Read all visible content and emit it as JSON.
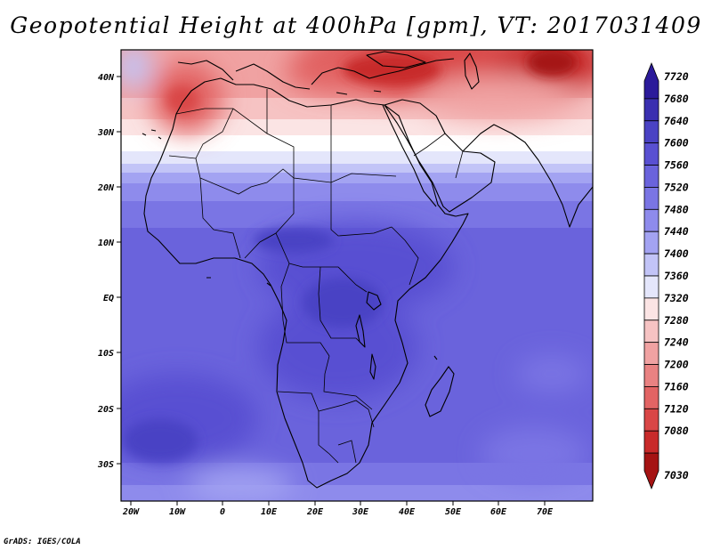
{
  "title": "Geopotential Height at 400hPa [gpm], VT: 2017031409",
  "credit": "GrADS: IGES/COLA",
  "map": {
    "region": "Africa",
    "lon_range": [
      -22,
      80
    ],
    "lat_range": [
      -37,
      45
    ],
    "lon_ticks": [
      "20W",
      "10W",
      "0",
      "10E",
      "20E",
      "30E",
      "40E",
      "50E",
      "60E",
      "70E"
    ],
    "lat_ticks": [
      "40N",
      "30N",
      "20N",
      "10N",
      "EQ",
      "10S",
      "20S",
      "30S"
    ],
    "features": [
      "coastlines",
      "country-borders",
      "shaded-contours"
    ]
  },
  "colorbar": {
    "levels": [
      "7720",
      "7680",
      "7640",
      "7600",
      "7560",
      "7520",
      "7480",
      "7440",
      "7400",
      "7360",
      "7320",
      "7280",
      "7240",
      "7200",
      "7160",
      "7120",
      "7080",
      "7030"
    ],
    "colors": [
      "#2b1a9a",
      "#3a2fb0",
      "#4a42c4",
      "#5950d2",
      "#6a63dc",
      "#7a75e4",
      "#8e8bec",
      "#a3a3f2",
      "#c2c4f7",
      "#e4e6fb",
      "#fbe4e4",
      "#f6c3c3",
      "#f0a2a2",
      "#e98282",
      "#e26464",
      "#d94646",
      "#c82a2a",
      "#a51313"
    ]
  }
}
